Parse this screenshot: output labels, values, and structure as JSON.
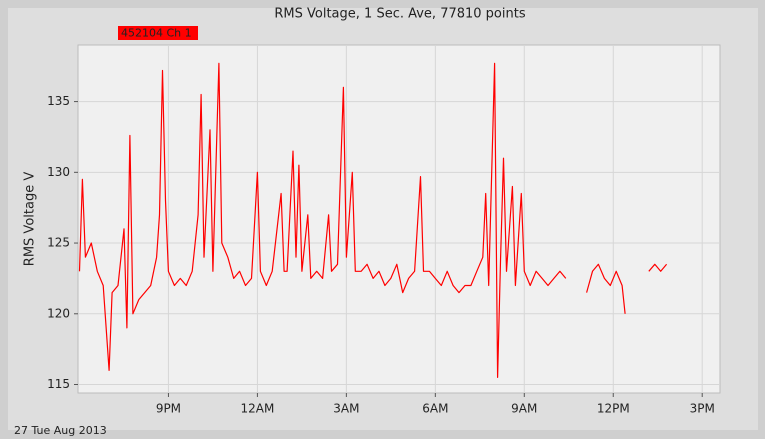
{
  "chart_data": {
    "type": "line",
    "title": "RMS Voltage, 1 Sec. Ave, 77810 points",
    "ylabel": "RMS Voltage V",
    "date_label": "27 Tue Aug 2013",
    "grid": true,
    "xlim": [
      17.95,
      39.6
    ],
    "ylim": [
      114.4,
      139
    ],
    "yticks": [
      115,
      120,
      125,
      130,
      135
    ],
    "xticks": [
      {
        "value": 21,
        "label": "9PM"
      },
      {
        "value": 24,
        "label": "12AM"
      },
      {
        "value": 27,
        "label": "3AM"
      },
      {
        "value": 30,
        "label": "6AM"
      },
      {
        "value": 33,
        "label": "9AM"
      },
      {
        "value": 36,
        "label": "12PM"
      },
      {
        "value": 39,
        "label": "3PM"
      }
    ],
    "series": [
      {
        "name": "452104 Ch 1",
        "color": "#ff0000",
        "x": [
          18.0,
          18.1,
          18.2,
          18.4,
          18.6,
          18.8,
          19.0,
          19.1,
          19.3,
          19.5,
          19.6,
          19.7,
          19.8,
          20.0,
          20.2,
          20.4,
          20.6,
          20.7,
          20.8,
          20.9,
          21.0,
          21.2,
          21.4,
          21.6,
          21.8,
          22.0,
          22.1,
          22.2,
          22.4,
          22.5,
          22.7,
          22.8,
          23.0,
          23.2,
          23.4,
          23.6,
          23.8,
          24.0,
          24.1,
          24.3,
          24.5,
          24.8,
          24.9,
          25.0,
          25.2,
          25.3,
          25.4,
          25.5,
          25.7,
          25.8,
          26.0,
          26.2,
          26.4,
          26.5,
          26.7,
          26.9,
          27.0,
          27.2,
          27.3,
          27.5,
          27.7,
          27.9,
          28.1,
          28.3,
          28.5,
          28.7,
          28.9,
          29.1,
          29.3,
          29.5,
          29.6,
          29.8,
          30.0,
          30.2,
          30.4,
          30.6,
          30.8,
          31.0,
          31.2,
          31.4,
          31.6,
          31.7,
          31.8,
          32.0,
          32.1,
          32.2,
          32.3,
          32.4,
          32.6,
          32.7,
          32.9,
          33.0,
          33.2,
          33.4,
          33.6,
          33.8,
          34.0,
          34.2,
          34.4,
          34.8,
          35.1,
          35.3,
          35.5,
          35.7,
          35.9,
          36.1,
          36.3,
          36.4,
          36.8,
          37.2,
          37.4,
          37.6,
          37.8
        ],
        "values": [
          123,
          129.5,
          124,
          125,
          123,
          122,
          116,
          121.5,
          122,
          126,
          119,
          132.6,
          120,
          121,
          121.5,
          122,
          124,
          127,
          137.2,
          128,
          123,
          122,
          122.5,
          122,
          123,
          127,
          135.5,
          124,
          133,
          123,
          137.7,
          125,
          124,
          122.5,
          123,
          122,
          122.5,
          130,
          123,
          122,
          123,
          128.5,
          123,
          123,
          131.5,
          124,
          130.5,
          123,
          127,
          122.5,
          123,
          122.5,
          127,
          123,
          123.5,
          136,
          124,
          130,
          123,
          123,
          123.5,
          122.5,
          123,
          122,
          122.5,
          123.5,
          121.5,
          122.5,
          123,
          129.7,
          123,
          123,
          122.5,
          122,
          123,
          122,
          121.5,
          122,
          122,
          123,
          124,
          128.5,
          122,
          137.7,
          115.5,
          124,
          131,
          123,
          129,
          122,
          128.5,
          123,
          122,
          123,
          122.5,
          122,
          122.5,
          123,
          122.5,
          null,
          121.5,
          123,
          123.5,
          122.5,
          122,
          123,
          122,
          120,
          null,
          123,
          123.5,
          123,
          123.5
        ]
      }
    ]
  }
}
